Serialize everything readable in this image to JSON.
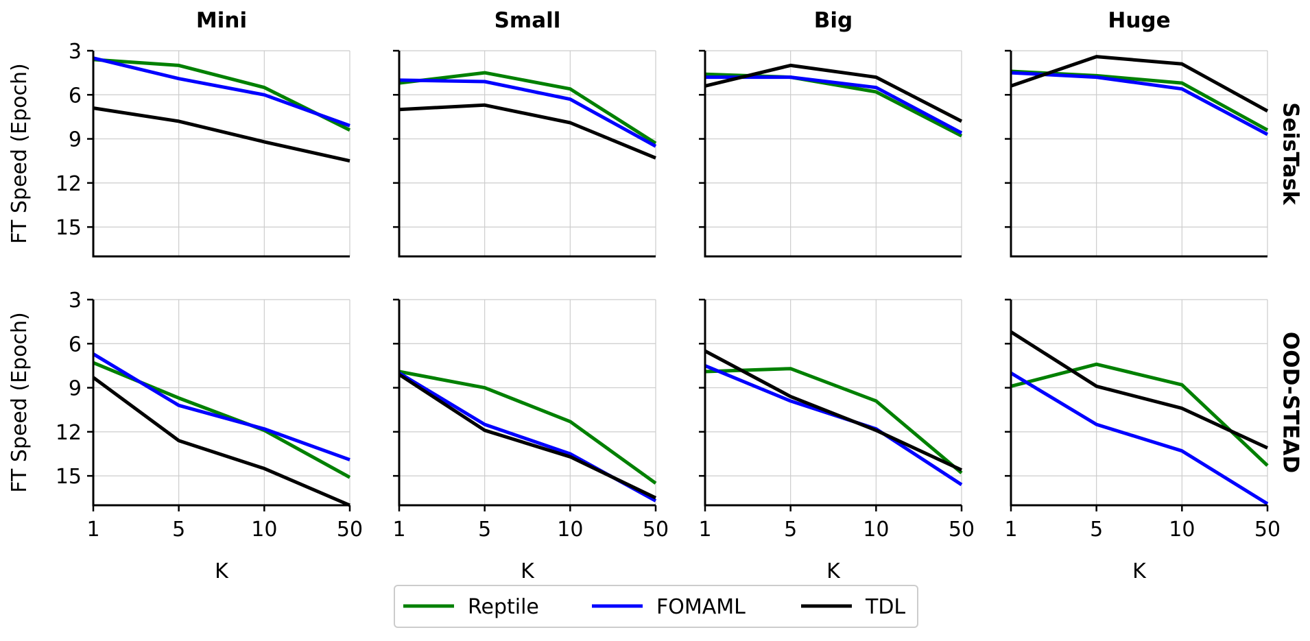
{
  "chart_data": {
    "type": "line",
    "layout": "2x4 small multiples",
    "columns": [
      "Mini",
      "Small",
      "Big",
      "Huge"
    ],
    "rows": [
      "SeisTask",
      "OOD-STEAD"
    ],
    "ylabel": "FT Speed (Epoch)",
    "xlabel": "K",
    "x": [
      1,
      5,
      10,
      50
    ],
    "x_tick_labels": [
      "1",
      "5",
      "10",
      "50"
    ],
    "y_ticks": [
      3,
      6,
      9,
      12,
      15
    ],
    "y_tick_labels": [
      "3",
      "6",
      "9",
      "12",
      "15"
    ],
    "ylim": [
      3,
      17
    ],
    "y_inverted": true,
    "grid": true,
    "legend": {
      "placement": "bottom-center",
      "entries": [
        {
          "name": "Reptile",
          "color": "#008000"
        },
        {
          "name": "FOMAML",
          "color": "#0000ff"
        },
        {
          "name": "TDL",
          "color": "#000000"
        }
      ]
    },
    "panels": [
      {
        "row": "SeisTask",
        "column": "Mini",
        "series": [
          {
            "name": "Reptile",
            "values": [
              3.6,
              4.0,
              5.5,
              8.4
            ]
          },
          {
            "name": "FOMAML",
            "values": [
              3.5,
              4.9,
              6.0,
              8.1
            ]
          },
          {
            "name": "TDL",
            "values": [
              6.9,
              7.8,
              9.2,
              10.5
            ]
          }
        ]
      },
      {
        "row": "SeisTask",
        "column": "Small",
        "series": [
          {
            "name": "Reptile",
            "values": [
              5.2,
              4.5,
              5.6,
              9.3
            ]
          },
          {
            "name": "FOMAML",
            "values": [
              5.0,
              5.1,
              6.3,
              9.5
            ]
          },
          {
            "name": "TDL",
            "values": [
              7.0,
              6.7,
              7.9,
              10.3
            ]
          }
        ]
      },
      {
        "row": "SeisTask",
        "column": "Big",
        "series": [
          {
            "name": "Reptile",
            "values": [
              4.6,
              4.8,
              5.8,
              8.8
            ]
          },
          {
            "name": "FOMAML",
            "values": [
              4.8,
              4.8,
              5.5,
              8.6
            ]
          },
          {
            "name": "TDL",
            "values": [
              5.4,
              4.0,
              4.8,
              7.8
            ]
          }
        ]
      },
      {
        "row": "SeisTask",
        "column": "Huge",
        "series": [
          {
            "name": "Reptile",
            "values": [
              4.4,
              4.7,
              5.2,
              8.4
            ]
          },
          {
            "name": "FOMAML",
            "values": [
              4.5,
              4.8,
              5.6,
              8.7
            ]
          },
          {
            "name": "TDL",
            "values": [
              5.4,
              3.4,
              3.9,
              7.1
            ]
          }
        ]
      },
      {
        "row": "OOD-STEAD",
        "column": "Mini",
        "series": [
          {
            "name": "Reptile",
            "values": [
              7.3,
              9.7,
              11.9,
              15.1
            ]
          },
          {
            "name": "FOMAML",
            "values": [
              6.7,
              10.2,
              11.8,
              13.9
            ]
          },
          {
            "name": "TDL",
            "values": [
              8.3,
              12.6,
              14.5,
              17.0
            ]
          }
        ]
      },
      {
        "row": "OOD-STEAD",
        "column": "Small",
        "series": [
          {
            "name": "Reptile",
            "values": [
              7.9,
              9.0,
              11.3,
              15.5
            ]
          },
          {
            "name": "FOMAML",
            "values": [
              8.0,
              11.5,
              13.5,
              16.7
            ]
          },
          {
            "name": "TDL",
            "values": [
              8.1,
              11.9,
              13.7,
              16.5
            ]
          }
        ]
      },
      {
        "row": "OOD-STEAD",
        "column": "Big",
        "series": [
          {
            "name": "Reptile",
            "values": [
              7.9,
              7.7,
              9.9,
              14.8
            ]
          },
          {
            "name": "FOMAML",
            "values": [
              7.5,
              9.9,
              11.8,
              15.6
            ]
          },
          {
            "name": "TDL",
            "values": [
              6.5,
              9.6,
              11.9,
              14.6
            ]
          }
        ]
      },
      {
        "row": "OOD-STEAD",
        "column": "Huge",
        "series": [
          {
            "name": "Reptile",
            "values": [
              8.9,
              7.4,
              8.8,
              14.3
            ]
          },
          {
            "name": "FOMAML",
            "values": [
              8.0,
              11.5,
              13.3,
              16.9
            ]
          },
          {
            "name": "TDL",
            "values": [
              5.2,
              8.9,
              10.4,
              13.1
            ]
          }
        ]
      }
    ]
  }
}
